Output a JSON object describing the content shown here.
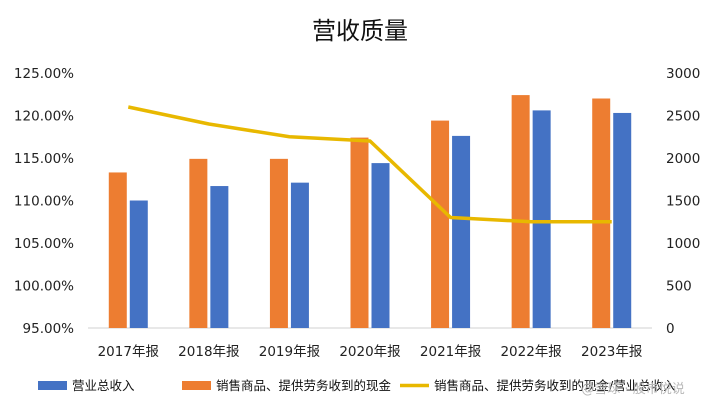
{
  "chart_data": {
    "type": "bar",
    "title": "营收质量",
    "categories": [
      "2017年报",
      "2018年报",
      "2019年报",
      "2020年报",
      "2021年报",
      "2022年报",
      "2023年报"
    ],
    "left_axis": {
      "ylim": [
        0.95,
        1.25
      ],
      "ticks": [
        "125.00%",
        "120.00%",
        "115.00%",
        "110.00%",
        "105.00%",
        "100.00%",
        "95.00%"
      ],
      "tick_values": [
        1.25,
        1.2,
        1.15,
        1.1,
        1.05,
        1.0,
        0.95
      ]
    },
    "right_axis": {
      "ylim": [
        0,
        3000
      ],
      "ticks": [
        "3000",
        "2500",
        "2000",
        "1500",
        "1000",
        "500",
        "0"
      ],
      "tick_values": [
        3000,
        2500,
        2000,
        1500,
        1000,
        500,
        0
      ]
    },
    "series": [
      {
        "name": "营业总收入",
        "type": "bar",
        "axis": "right",
        "color": "#4472C4",
        "values": [
          1500,
          1670,
          1710,
          1940,
          2260,
          2560,
          2530
        ]
      },
      {
        "name": "销售商品、提供劳务收到的现金",
        "type": "bar",
        "axis": "right",
        "color": "#ED7D31",
        "values": [
          1830,
          1990,
          1990,
          2240,
          2440,
          2740,
          2700
        ]
      },
      {
        "name": "销售商品、提供劳务收到的现金/营业总收入",
        "type": "line",
        "axis": "left",
        "color": "#E8B800",
        "values": [
          1.21,
          1.19,
          1.175,
          1.17,
          1.08,
          1.075,
          1.075
        ]
      }
    ],
    "grid": false,
    "legend_position": "bottom"
  },
  "watermark": "@雪球 · 股市悦说"
}
